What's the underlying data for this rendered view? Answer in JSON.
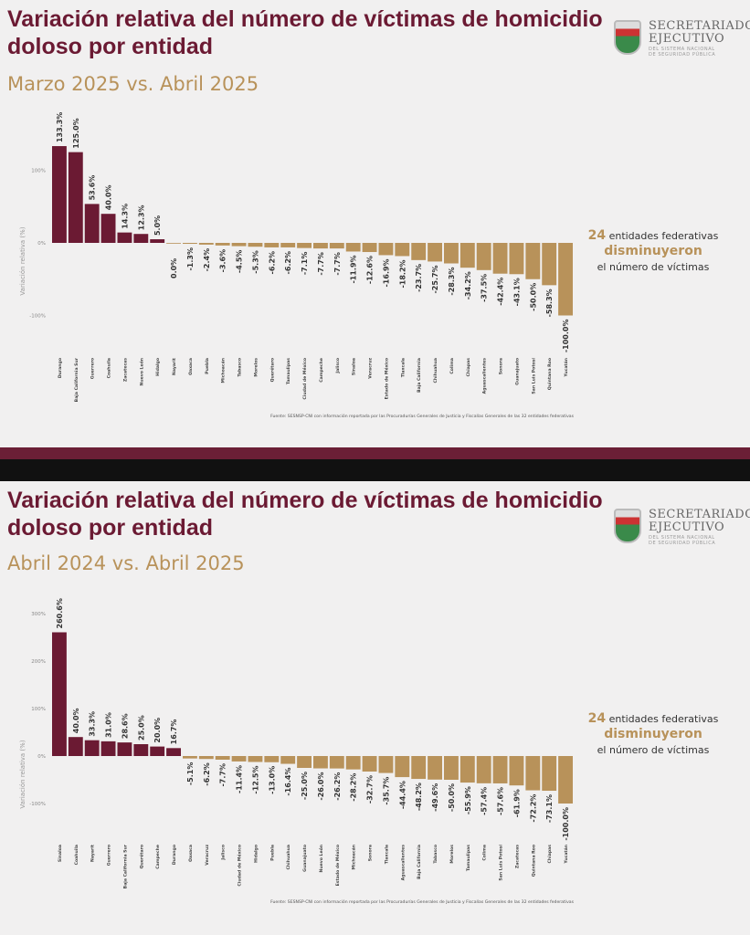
{
  "logo": {
    "line1": "SECRETARIADO",
    "line2": "EJECUTIVO",
    "line3": "DEL SISTEMA NACIONAL",
    "line4": "DE SEGURIDAD PÚBLICA"
  },
  "colors": {
    "positive": "#6b1a33",
    "negative": "#b8925a",
    "title": "#6b1a33",
    "subtitle": "#b8925a"
  },
  "chart_data": [
    {
      "type": "bar",
      "title": "Variación relativa del número de víctimas de homicidio doloso por entidad",
      "subtitle": "Marzo 2025 vs. Abril 2025",
      "ylabel": "Variación relativa (%)",
      "yticks": [
        "100%",
        "0%",
        "-100%"
      ],
      "ylim": [
        -100,
        140
      ],
      "source": "Fuente: SESNSP-CNI con información reportada por las Procuradurías Generales de Justicia y Fiscalías Generales de las 32 entidades federativas",
      "note": {
        "count": "24",
        "text1": "entidades federativas",
        "verb": "disminuyeron",
        "text2": "el número de víctimas"
      },
      "categories": [
        "Durango",
        "Baja California Sur",
        "Guerrero",
        "Coahuila",
        "Zacatecas",
        "Nuevo León",
        "Hidalgo",
        "Nayarit",
        "Oaxaca",
        "Puebla",
        "Michoacán",
        "Tabasco",
        "Morelos",
        "Querétaro",
        "Tamaulipas",
        "Ciudad de México",
        "Campeche",
        "Jalisco",
        "Sinaloa",
        "Veracruz",
        "Estado de México",
        "Tlaxcala",
        "Baja California",
        "Chihuahua",
        "Colima",
        "Chiapas",
        "Aguascalientes",
        "Sonora",
        "Guanajuato",
        "San Luis Potosí",
        "Quintana Roo",
        "Yucatán"
      ],
      "values": [
        133.3,
        125.0,
        53.6,
        40.0,
        14.3,
        12.3,
        5.0,
        0.0,
        -1.3,
        -2.4,
        -3.6,
        -4.5,
        -5.3,
        -6.2,
        -6.2,
        -7.1,
        -7.7,
        -7.7,
        -11.9,
        -12.6,
        -16.9,
        -18.2,
        -23.7,
        -25.7,
        -28.3,
        -34.2,
        -37.5,
        -42.4,
        -43.1,
        -50.0,
        -58.3,
        -100.0
      ]
    },
    {
      "type": "bar",
      "title": "Variación relativa del número de víctimas de homicidio doloso por entidad",
      "subtitle": "Abril 2024 vs. Abril 2025",
      "ylabel": "Variación relativa (%)",
      "yticks": [
        "300%",
        "200%",
        "100%",
        "0%",
        "-100%"
      ],
      "ylim": [
        -100,
        300
      ],
      "source": "Fuente: SESNSP-CNI con información reportada por las Procuradurías Generales de Justicia y Fiscalías Generales de las 32 entidades federativas",
      "note": {
        "count": "24",
        "text1": "entidades federativas",
        "verb": "disminuyeron",
        "text2": "el número de víctimas"
      },
      "categories": [
        "Sinaloa",
        "Coahuila",
        "Nayarit",
        "Guerrero",
        "Baja California Sur",
        "Querétaro",
        "Campeche",
        "Durango",
        "Oaxaca",
        "Veracruz",
        "Jalisco",
        "Ciudad de México",
        "Hidalgo",
        "Puebla",
        "Chihuahua",
        "Guanajuato",
        "Nuevo León",
        "Estado de México",
        "Michoacán",
        "Sonora",
        "Tlaxcala",
        "Aguascalientes",
        "Baja California",
        "Tabasco",
        "Morelos",
        "Tamaulipas",
        "Colima",
        "San Luis Potosí",
        "Zacatecas",
        "Quintana Roo",
        "Chiapas",
        "Yucatán"
      ],
      "values": [
        260.6,
        40.0,
        33.3,
        31.0,
        28.6,
        25.0,
        20.0,
        16.7,
        -5.1,
        -6.2,
        -7.7,
        -11.4,
        -12.5,
        -13.0,
        -16.4,
        -25.0,
        -26.0,
        -26.2,
        -28.2,
        -32.7,
        -35.7,
        -44.4,
        -48.2,
        -49.6,
        -50.0,
        -55.9,
        -57.4,
        -57.6,
        -61.9,
        -72.2,
        -73.1,
        -100.0
      ]
    }
  ]
}
